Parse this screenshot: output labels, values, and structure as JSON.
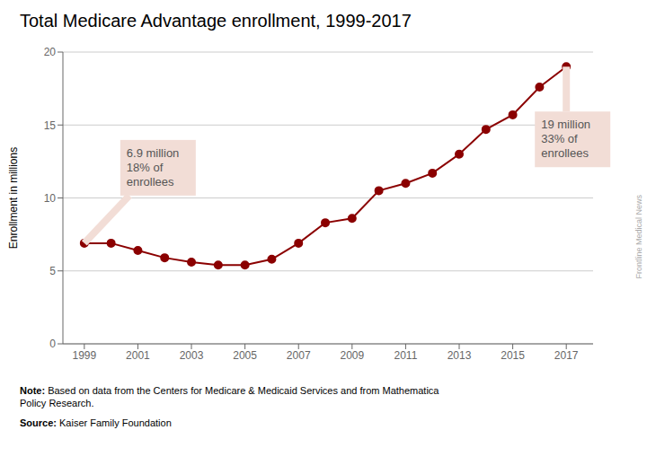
{
  "chart_data": {
    "type": "line",
    "title": "Total Medicare Advantage enrollment, 1999-2017",
    "ylabel": "Enrollment in millions",
    "x": [
      1999,
      2000,
      2001,
      2002,
      2003,
      2004,
      2005,
      2006,
      2007,
      2008,
      2009,
      2010,
      2011,
      2012,
      2013,
      2014,
      2015,
      2016,
      2017
    ],
    "values": [
      6.9,
      6.9,
      6.4,
      5.9,
      5.6,
      5.4,
      5.4,
      5.8,
      6.9,
      8.3,
      8.6,
      10.5,
      11.0,
      11.7,
      13.0,
      14.7,
      15.7,
      17.6,
      19.0
    ],
    "color": "#8B0000",
    "marker": "circle",
    "xlim": [
      1998.2,
      2018.0
    ],
    "xticks": [
      1999,
      2001,
      2003,
      2005,
      2007,
      2009,
      2011,
      2013,
      2015,
      2017
    ],
    "ylim": [
      0,
      20
    ],
    "yticks": [
      0,
      5,
      10,
      15,
      20
    ],
    "grid": true,
    "annotations": [
      {
        "text": "6.9 million\n18% of\nenrollees",
        "x": 1999,
        "y": 6.9,
        "color": "#f2ddd6"
      },
      {
        "text": "19 million\n33% of\nenrollees",
        "x": 2017,
        "y": 19.0,
        "color": "#f2ddd6"
      }
    ],
    "notes": [
      {
        "label": "Note:",
        "text": " Based on data from the Centers for Medicare & Medicaid Services and from Mathematica\nPolicy Research."
      },
      {
        "label": "Source:",
        "text": " Kaiser Family Foundation"
      }
    ],
    "watermark": "Frontline Medical News"
  }
}
